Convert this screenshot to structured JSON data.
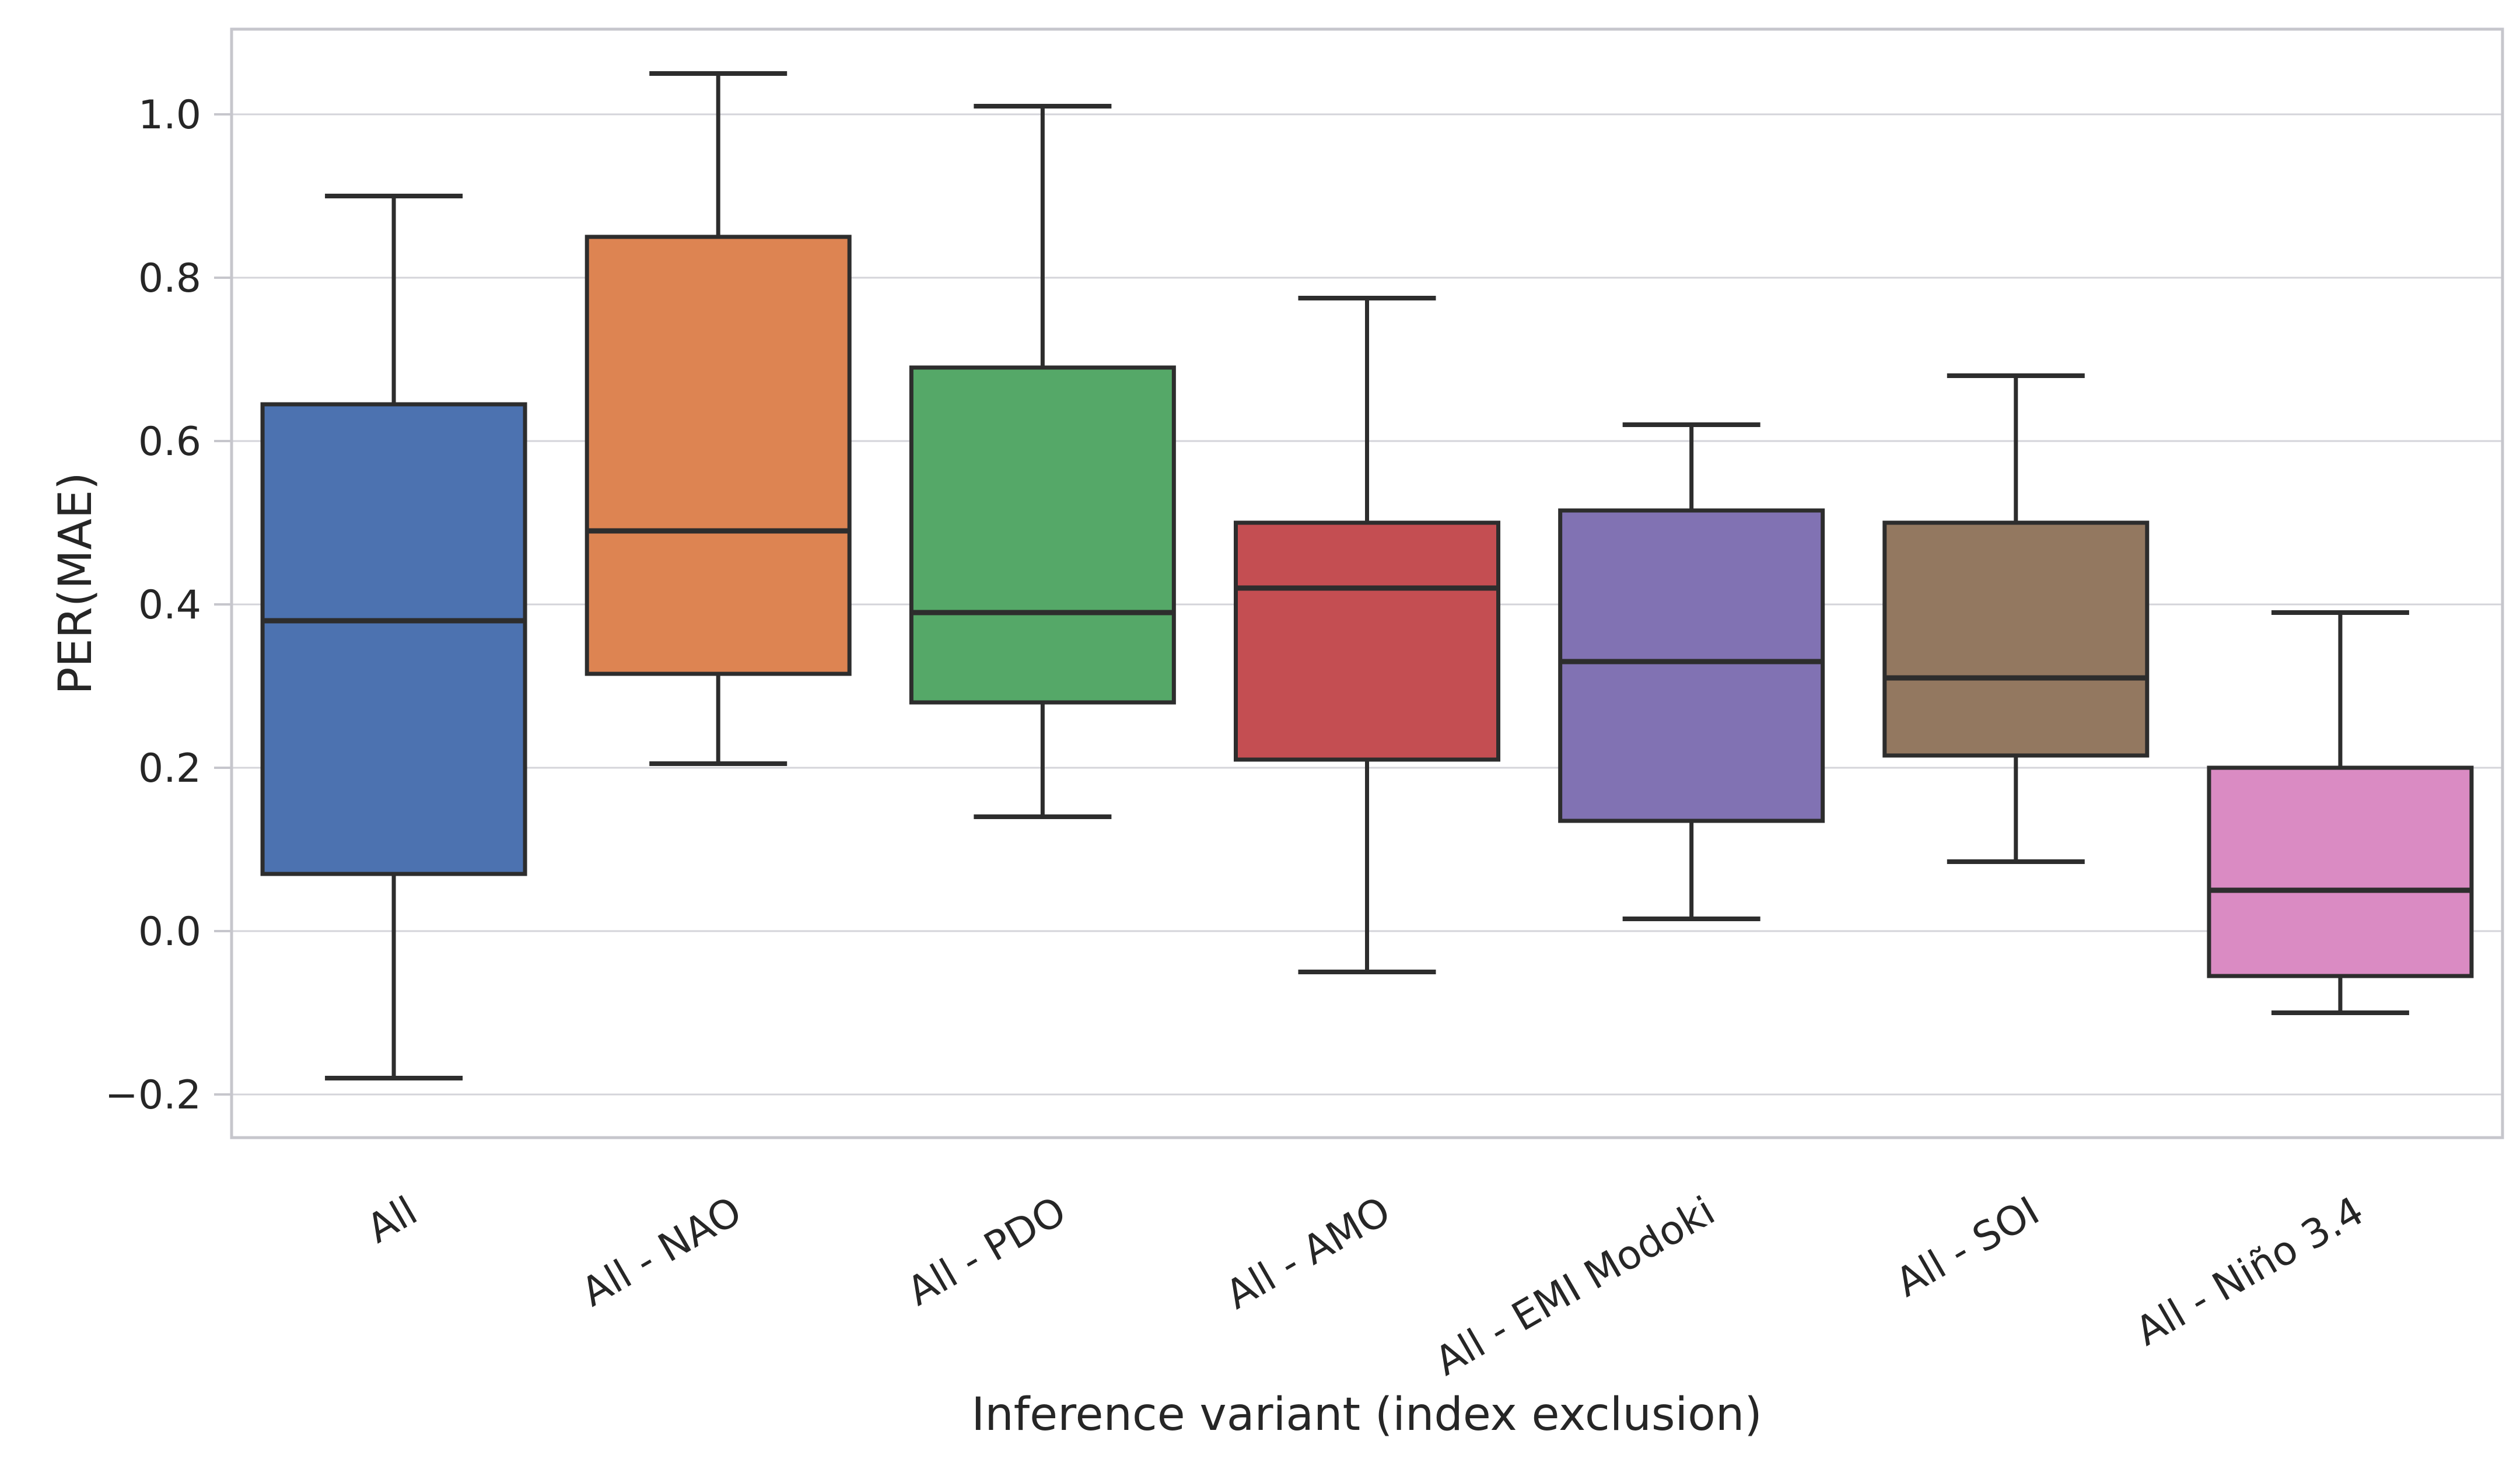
{
  "figure": {
    "background": "#ffffff",
    "text_color": "#262626"
  },
  "chart_data": {
    "type": "box",
    "title": "",
    "xlabel": "Inference variant (index exclusion)",
    "ylabel": "PER(MAE)",
    "categories": [
      "All",
      "All - NAO",
      "All - PDO",
      "All - AMO",
      "All - EMI Modoki",
      "All - SOI",
      "All - Niño 3.4"
    ],
    "series": [
      {
        "name": "All",
        "color": "#4C72B0",
        "whisker_low": -0.18,
        "q1": 0.07,
        "median": 0.38,
        "q3": 0.645,
        "whisker_high": 0.9
      },
      {
        "name": "All - NAO",
        "color": "#DD8452",
        "whisker_low": 0.205,
        "q1": 0.315,
        "median": 0.49,
        "q3": 0.85,
        "whisker_high": 1.05
      },
      {
        "name": "All - PDO",
        "color": "#55A868",
        "whisker_low": 0.14,
        "q1": 0.28,
        "median": 0.39,
        "q3": 0.69,
        "whisker_high": 1.01
      },
      {
        "name": "All - AMO",
        "color": "#C44E52",
        "whisker_low": -0.05,
        "q1": 0.21,
        "median": 0.42,
        "q3": 0.5,
        "whisker_high": 0.775
      },
      {
        "name": "All - EMI Modoki",
        "color": "#8172B3",
        "whisker_low": 0.015,
        "q1": 0.135,
        "median": 0.33,
        "q3": 0.515,
        "whisker_high": 0.62
      },
      {
        "name": "All - SOI",
        "color": "#937860",
        "whisker_low": 0.085,
        "q1": 0.215,
        "median": 0.31,
        "q3": 0.5,
        "whisker_high": 0.68
      },
      {
        "name": "All - Niño 3.4",
        "color": "#DA8BC3",
        "whisker_low": -0.1,
        "q1": -0.055,
        "median": 0.05,
        "q3": 0.2,
        "whisker_high": 0.39
      }
    ],
    "yticks": [
      1.0,
      0.8,
      0.6,
      0.4,
      0.2,
      0.0,
      -0.2
    ],
    "ytick_labels": [
      "1.0",
      "0.8",
      "0.6",
      "0.4",
      "0.2",
      "0.0",
      "−0.2"
    ],
    "ylim": [
      -0.253,
      1.104
    ],
    "grid": "horizontal",
    "legend": "none",
    "style": {
      "edge_color": "#2d2d2d",
      "frame_color": "#c6c6cc",
      "grid_color": "#d4d4da",
      "tick_color": "#c6c6cc",
      "label_color": "#262626",
      "xlabel_rotation_deg": -30
    }
  }
}
